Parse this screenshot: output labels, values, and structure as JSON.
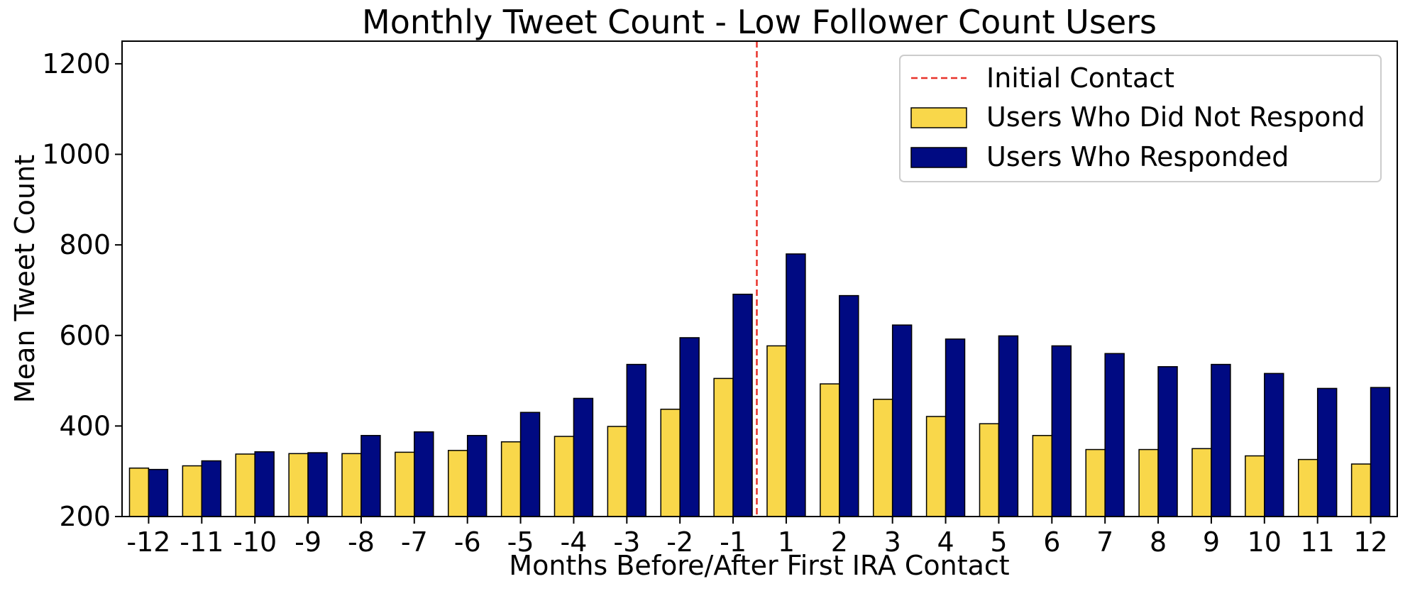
{
  "chart_data": {
    "type": "bar",
    "title": "Monthly Tweet Count - Low Follower Count Users",
    "xlabel": "Months Before/After First IRA Contact",
    "ylabel": "Mean Tweet Count",
    "ylim": [
      200,
      1250
    ],
    "yticks": [
      200,
      400,
      600,
      800,
      1000,
      1200
    ],
    "ytick_labels": [
      "200",
      "400",
      "600",
      "800",
      "1000",
      "1200"
    ],
    "categories": [
      "-12",
      "-11",
      "-10",
      "-9",
      "-8",
      "-7",
      "-6",
      "-5",
      "-4",
      "-3",
      "-2",
      "-1",
      "1",
      "2",
      "3",
      "4",
      "5",
      "6",
      "7",
      "8",
      "9",
      "10",
      "11",
      "12"
    ],
    "series": [
      {
        "name": "Users Who Did Not Respond",
        "color": "#f9d74a",
        "values": [
          307,
          312,
          338,
          339,
          339,
          342,
          346,
          365,
          377,
          399,
          437,
          505,
          577,
          493,
          459,
          421,
          405,
          379,
          348,
          348,
          350,
          334,
          326,
          316
        ]
      },
      {
        "name": "Users Who Responded",
        "color": "#000a82",
        "values": [
          304,
          323,
          343,
          341,
          379,
          387,
          379,
          430,
          461,
          536,
          595,
          691,
          780,
          688,
          623,
          592,
          599,
          577,
          560,
          531,
          536,
          516,
          483,
          485
        ]
      }
    ],
    "vline": {
      "label": "Initial Contact",
      "position": "between -1 and 1",
      "color": "#e8322a"
    },
    "legend_position": "top-right",
    "grid": false
  }
}
